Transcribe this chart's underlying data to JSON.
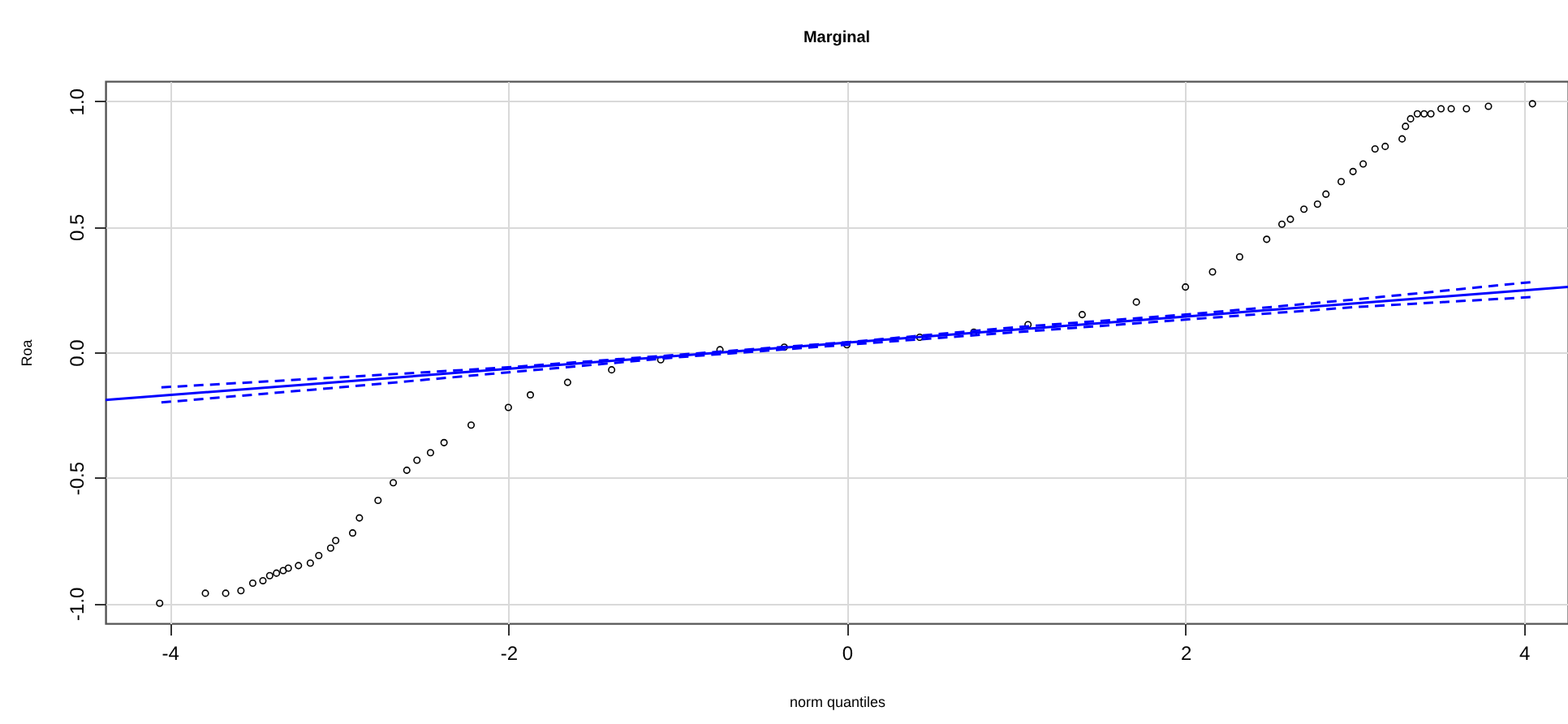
{
  "chart_data": {
    "type": "scatter",
    "title": "Marginal",
    "xlabel": "norm quantiles",
    "ylabel": "Roa",
    "xlim": [
      -4.38,
      4.26
    ],
    "ylim": [
      -1.08,
      1.08
    ],
    "xticks": [
      -4,
      -2,
      0,
      2,
      4
    ],
    "yticks": [
      {
        "value": -1,
        "label": "-1.0"
      },
      -0.5,
      {
        "value": 0,
        "label": "0.0"
      },
      0.5,
      {
        "value": 1,
        "label": "1.0"
      }
    ],
    "grid": true,
    "series": [
      {
        "marker": "circle",
        "color": "#000000",
        "x": [
          -4.06,
          -3.79,
          -3.67,
          -3.58,
          -3.51,
          -3.45,
          -3.41,
          -3.37,
          -3.33,
          -3.3,
          -3.24,
          -3.17,
          -3.12,
          -3.05,
          -3.02,
          -2.92,
          -2.88,
          -2.77,
          -2.68,
          -2.6,
          -2.54,
          -2.46,
          -2.38,
          -2.22,
          -2.0,
          -1.87,
          -1.65,
          -1.39,
          -1.1,
          -0.75,
          -0.37,
          0.0,
          0.43,
          0.75,
          1.07,
          1.39,
          1.71,
          2.0,
          2.16,
          2.32,
          2.48,
          2.57,
          2.62,
          2.7,
          2.78,
          2.83,
          2.92,
          2.99,
          3.05,
          3.12,
          3.18,
          3.28,
          3.3,
          3.33,
          3.37,
          3.41,
          3.45,
          3.51,
          3.57,
          3.66,
          3.79,
          4.05
        ],
        "values": [
          -1.0,
          -0.96,
          -0.96,
          -0.95,
          -0.92,
          -0.91,
          -0.89,
          -0.88,
          -0.87,
          -0.86,
          -0.85,
          -0.84,
          -0.81,
          -0.78,
          -0.75,
          -0.72,
          -0.66,
          -0.59,
          -0.52,
          -0.47,
          -0.43,
          -0.4,
          -0.36,
          -0.29,
          -0.22,
          -0.17,
          -0.12,
          -0.07,
          -0.03,
          0.01,
          0.02,
          0.03,
          0.06,
          0.08,
          0.11,
          0.15,
          0.2,
          0.26,
          0.32,
          0.38,
          0.45,
          0.51,
          0.53,
          0.57,
          0.59,
          0.63,
          0.68,
          0.72,
          0.75,
          0.81,
          0.82,
          0.85,
          0.9,
          0.93,
          0.95,
          0.95,
          0.95,
          0.97,
          0.97,
          0.97,
          0.98,
          0.99
        ]
      },
      {
        "type": "line",
        "color": "#0000ff",
        "line_style": "solid",
        "x": [
          -4.38,
          4.26
        ],
        "values": [
          -0.19,
          0.26
        ]
      },
      {
        "type": "line",
        "color": "#0000ff",
        "line_style": "dashed",
        "x": [
          -4.05,
          -3,
          -2,
          -1,
          0,
          1,
          2,
          3,
          4.05
        ],
        "values": [
          -0.14,
          -0.1,
          -0.06,
          -0.01,
          0.04,
          0.1,
          0.15,
          0.21,
          0.28
        ]
      },
      {
        "type": "line",
        "color": "#0000ff",
        "line_style": "dashed",
        "x": [
          -4.05,
          -3,
          -2,
          -1,
          0,
          1,
          2,
          3,
          4.05
        ],
        "values": [
          -0.2,
          -0.14,
          -0.08,
          -0.02,
          0.03,
          0.08,
          0.13,
          0.18,
          0.22
        ]
      }
    ]
  }
}
